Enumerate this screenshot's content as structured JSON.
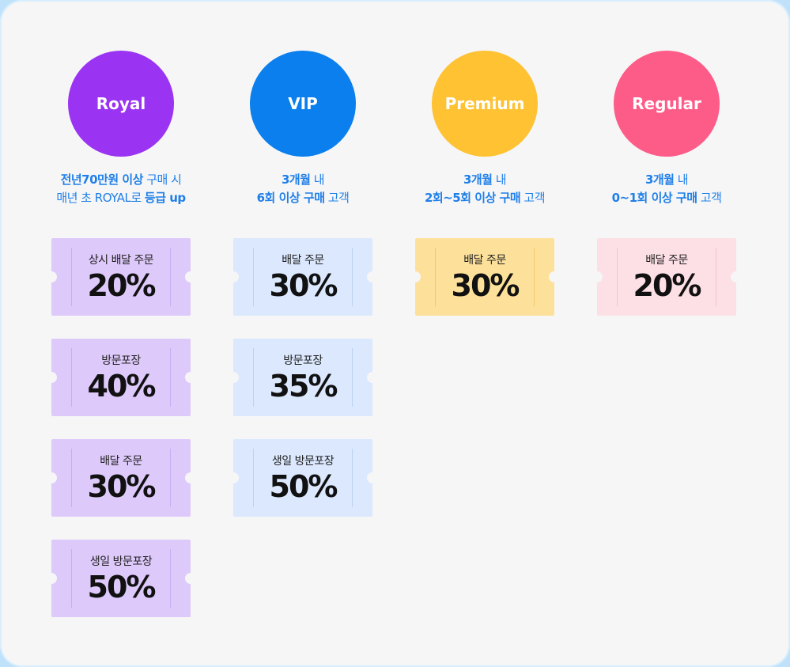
{
  "tiers": [
    {
      "name": "Royal",
      "color": "#9a33f2",
      "ticket_bg": "#dec9fb",
      "ticket_line": "#c9aef0",
      "desc_lines": [
        [
          {
            "t": "전년70만원 ",
            "b": true
          },
          {
            "t": "이상",
            "b": true
          },
          {
            "t": " 구매 시",
            "b": false
          }
        ],
        [
          {
            "t": "매년 초 ROYAL로 ",
            "b": false
          },
          {
            "t": "등급 up",
            "b": true
          }
        ]
      ],
      "coupons": [
        {
          "label": "상시 배달 주문",
          "pct": "20%"
        },
        {
          "label": "방문포장",
          "pct": "40%"
        },
        {
          "label": "배달 주문",
          "pct": "30%"
        },
        {
          "label": "생일 방문포장",
          "pct": "50%"
        }
      ]
    },
    {
      "name": "VIP",
      "color": "#0a7fed",
      "ticket_bg": "#dbe8fd",
      "ticket_line": "#bcd3f4",
      "desc_lines": [
        [
          {
            "t": "3개월",
            "b": true
          },
          {
            "t": " 내",
            "b": false
          }
        ],
        [
          {
            "t": "6회 이상 구매",
            "b": true
          },
          {
            "t": " 고객",
            "b": false
          }
        ]
      ],
      "coupons": [
        {
          "label": "배달 주문",
          "pct": "30%"
        },
        {
          "label": "방문포장",
          "pct": "35%"
        },
        {
          "label": "생일 방문포장",
          "pct": "50%"
        }
      ]
    },
    {
      "name": "Premium",
      "color": "#fec233",
      "ticket_bg": "#fde19b",
      "ticket_line": "#efc96c",
      "desc_lines": [
        [
          {
            "t": "3개월",
            "b": true
          },
          {
            "t": " 내",
            "b": false
          }
        ],
        [
          {
            "t": "2회~5회 이상 구매",
            "b": true
          },
          {
            "t": " 고객",
            "b": false
          }
        ]
      ],
      "coupons": [
        {
          "label": "배달 주문",
          "pct": "30%"
        }
      ]
    },
    {
      "name": "Regular",
      "color": "#fe5c88",
      "ticket_bg": "#fde0e6",
      "ticket_line": "#f3c3cf",
      "desc_lines": [
        [
          {
            "t": "3개월",
            "b": true
          },
          {
            "t": " 내",
            "b": false
          }
        ],
        [
          {
            "t": "0~1회 이상 구매",
            "b": true
          },
          {
            "t": " 고객",
            "b": false
          }
        ]
      ],
      "coupons": [
        {
          "label": "배달 주문",
          "pct": "20%"
        }
      ]
    }
  ]
}
